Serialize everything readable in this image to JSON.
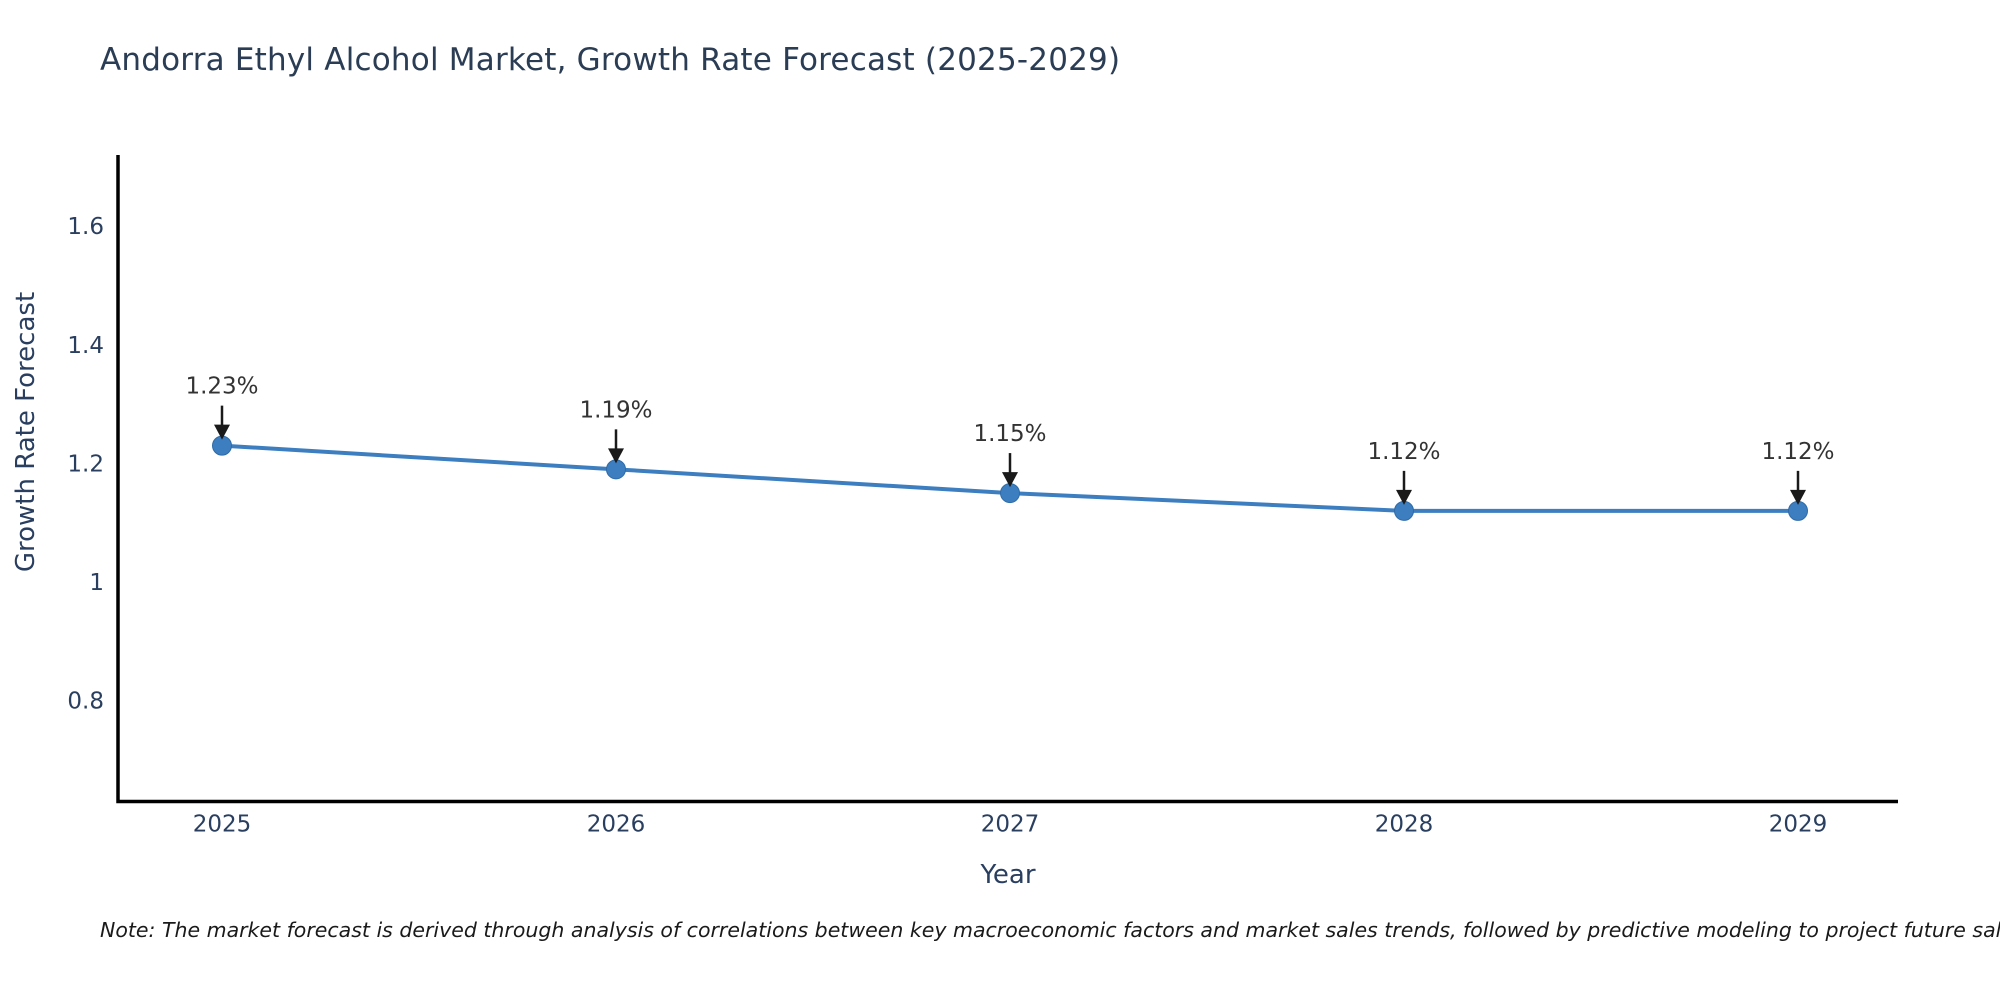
{
  "title": "Andorra Ethyl Alcohol Market, Growth Rate Forecast (2025-2029)",
  "note": "Note: The market forecast is derived through analysis of correlations between key macroeconomic factors and market sales trends, followed by predictive modeling to project future sales",
  "chart_data": {
    "type": "line",
    "title": "Andorra Ethyl Alcohol Market, Growth Rate Forecast (2025-2029)",
    "xlabel": "Year",
    "ylabel": "Growth Rate Forecast",
    "categories": [
      2025,
      2026,
      2027,
      2028,
      2029
    ],
    "series": [
      {
        "name": "Growth Rate Forecast",
        "values": [
          1.23,
          1.19,
          1.15,
          1.12,
          1.12
        ],
        "point_labels": [
          "1.23%",
          "1.19%",
          "1.15%",
          "1.12%",
          "1.12%"
        ]
      }
    ],
    "yticks": [
      1.6,
      1.4,
      1.2,
      1,
      0.8
    ],
    "ylim": [
      0.63,
      1.72
    ],
    "grid": false,
    "legend": false,
    "annotations_style": "value label above each point with downward black arrow",
    "colors": {
      "line": "#3c7ebf",
      "marker": "#3c7ebf",
      "marker_edge": "#2f6ba8",
      "axis_line": "#000000",
      "tick_label": "#2a3f5f",
      "title_text": "#2b3d54",
      "annotation_text": "#333333",
      "annotation_arrow": "#1a1a1a",
      "background": "#ffffff"
    }
  }
}
